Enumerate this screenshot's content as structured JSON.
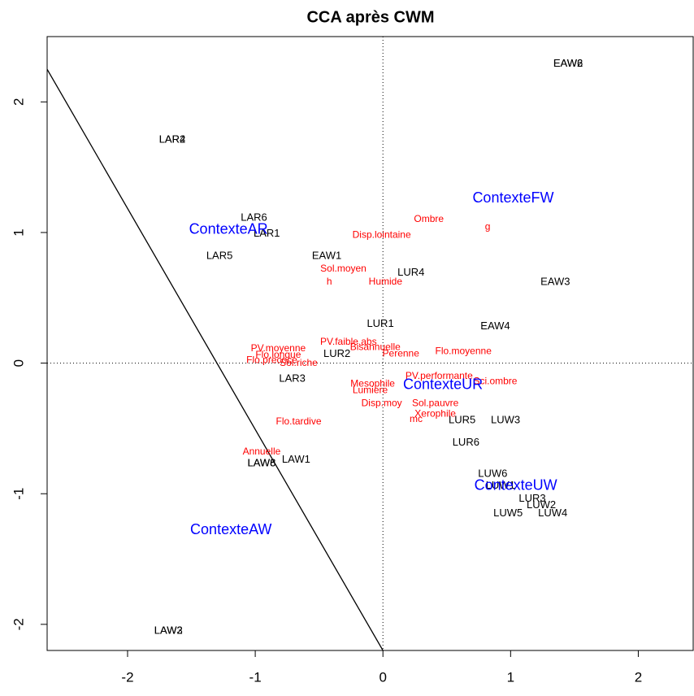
{
  "chart_data": {
    "type": "scatter",
    "title": "CCA après CWM",
    "xlim": [
      -2.63,
      2.43
    ],
    "ylim": [
      -2.2,
      2.5
    ],
    "xticks": [
      -2,
      -1,
      0,
      1,
      2
    ],
    "yticks": [
      -2,
      -1,
      0,
      1,
      2
    ],
    "reference_lines": {
      "x": 0,
      "y": 0
    },
    "line_segment": {
      "x": [
        -2.63,
        0
      ],
      "y": [
        2.25,
        -2.2
      ],
      "color": "#000000"
    },
    "series": [
      {
        "color": "#000000",
        "font_size": 13,
        "labels": [
          "EAW2",
          "EAW6",
          "LAR2",
          "LAR4",
          "LAR6",
          "LAR1",
          "LAR5",
          "EAW1",
          "LUR4",
          "EAW3",
          "LUR1",
          "EAW4",
          "LUR2",
          "LAR3",
          "LUR5",
          "LUW3",
          "LUR6",
          "LAW1",
          "LAW6",
          "LAW8",
          "LUW6",
          "LUW1",
          "LUR3",
          "LUW2",
          "LUW5",
          "LUW4",
          "LAW2",
          "LAW3"
        ],
        "x": [
          1.45,
          1.45,
          -1.65,
          -1.65,
          -1.01,
          -0.91,
          -1.28,
          -0.44,
          0.22,
          1.35,
          -0.02,
          0.88,
          -0.36,
          -0.71,
          0.62,
          0.96,
          0.65,
          -0.68,
          -0.95,
          -0.95,
          0.86,
          0.92,
          1.17,
          1.24,
          0.98,
          1.33,
          -1.68,
          -1.68
        ],
        "values": [
          2.29,
          2.29,
          1.71,
          1.71,
          1.11,
          0.99,
          0.82,
          0.82,
          0.69,
          0.62,
          0.3,
          0.28,
          0.07,
          -0.12,
          -0.44,
          -0.44,
          -0.61,
          -0.74,
          -0.77,
          -0.77,
          -0.85,
          -0.94,
          -1.04,
          -1.09,
          -1.15,
          -1.15,
          -2.05,
          -2.05
        ]
      },
      {
        "color": "#ff0000",
        "font_size": 12,
        "labels": [
          "Ombre",
          "g",
          "Disp.lointaine",
          "Sol.moyen",
          "h",
          "Humide",
          "PV.moyenne",
          "PV.faible.abs",
          "Bisannuelle",
          "Perenne",
          "Flo.moyenne",
          "Flo.longue",
          "Flo.precoce",
          "Sol.riche",
          "PV.performante",
          "Mesophile",
          "Lumiere",
          "Sci.ombre",
          "Disp.moy",
          "Sol.pauvre",
          "Xerophile",
          "mc",
          "Flo.tardive",
          "Annuelle"
        ],
        "x": [
          0.36,
          0.82,
          -0.01,
          -0.31,
          -0.42,
          0.02,
          -0.82,
          -0.27,
          -0.06,
          0.14,
          0.63,
          -0.82,
          -0.87,
          -0.66,
          0.44,
          -0.08,
          -0.1,
          0.88,
          -0.01,
          0.41,
          0.41,
          0.26,
          -0.66,
          -0.95
        ],
        "values": [
          1.1,
          1.04,
          0.98,
          0.72,
          0.62,
          0.62,
          0.11,
          0.16,
          0.12,
          0.07,
          0.09,
          0.06,
          0.02,
          0.0,
          -0.1,
          -0.16,
          -0.21,
          -0.14,
          -0.31,
          -0.31,
          -0.39,
          -0.43,
          -0.45,
          -0.68
        ]
      },
      {
        "color": "#0000ff",
        "font_size": 18,
        "labels": [
          "ContexteFW",
          "ContexteAR",
          "ContexteUR",
          "ContexteUW",
          "ContexteAW"
        ],
        "x": [
          1.02,
          -1.21,
          0.47,
          1.04,
          -1.19
        ],
        "values": [
          1.26,
          1.02,
          -0.17,
          -0.94,
          -1.28
        ]
      }
    ]
  }
}
